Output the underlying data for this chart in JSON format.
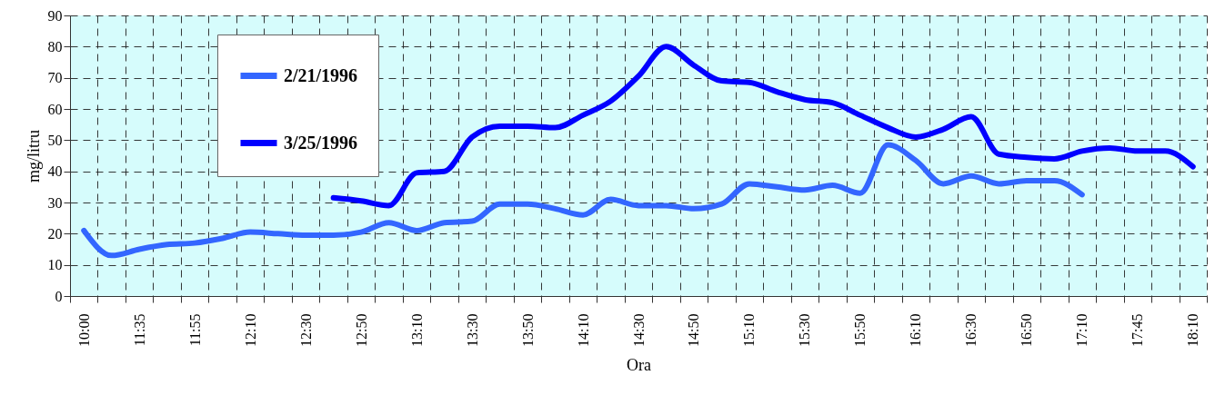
{
  "chart_data": {
    "type": "line",
    "xlabel": "Ora",
    "ylabel": "mg/litru",
    "categories": [
      "10:00",
      null,
      "11:35",
      null,
      "11:55",
      null,
      "12:10",
      null,
      "12:30",
      null,
      "12:50",
      null,
      "13:10",
      null,
      "13:30",
      null,
      "13:50",
      null,
      "14:10",
      null,
      "14:30",
      null,
      "14:50",
      null,
      "15:10",
      null,
      "15:30",
      null,
      "15:50",
      null,
      "16:10",
      null,
      "16:30",
      null,
      "16:50",
      null,
      "17:10",
      null,
      "17:45",
      null,
      "18:10"
    ],
    "series": [
      {
        "name": "2/21/1996",
        "color": "#3366ff",
        "values": [
          21,
          13,
          15,
          16.5,
          17,
          18.5,
          20.5,
          20,
          19.5,
          19.5,
          20.5,
          23.5,
          21,
          23.5,
          24,
          29.5,
          29.5,
          28,
          26,
          31,
          29,
          29,
          28,
          29.5,
          36,
          35,
          34,
          35.5,
          33,
          48.5,
          43.5,
          36,
          38.5,
          36,
          37,
          37,
          32.5,
          null,
          null,
          null,
          null
        ]
      },
      {
        "name": "3/25/1996",
        "color": "#0000ff",
        "values": [
          null,
          null,
          null,
          null,
          null,
          null,
          null,
          null,
          null,
          31.5,
          30.5,
          29,
          39.5,
          40,
          51,
          54.5,
          54.5,
          54,
          58,
          62.5,
          70.5,
          80,
          74,
          69,
          68.5,
          65.5,
          63,
          62,
          58,
          54,
          51,
          53.5,
          57.5,
          45.5,
          44.5,
          44,
          46.5,
          47.5,
          46.5,
          46.5,
          41.5
        ]
      }
    ],
    "ylim": [
      0,
      90
    ],
    "yticks": [
      0,
      10,
      20,
      30,
      40,
      50,
      60,
      70,
      80,
      90
    ],
    "grid": true,
    "legend": "top left"
  }
}
